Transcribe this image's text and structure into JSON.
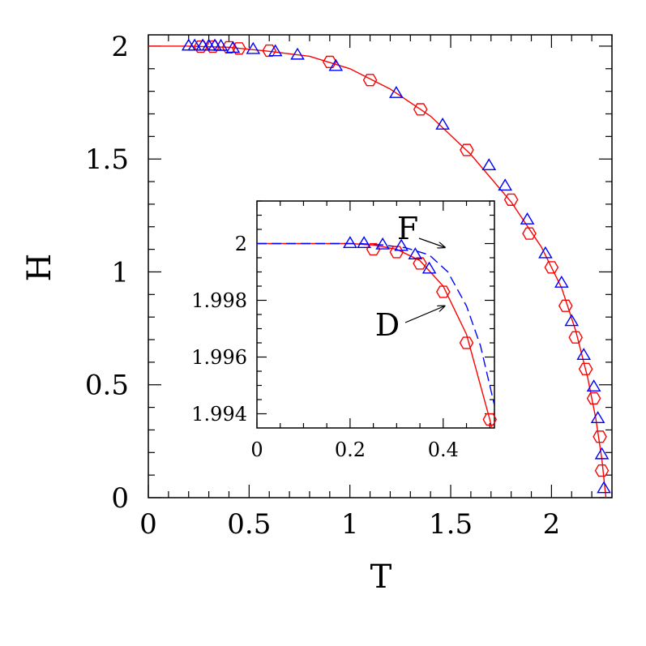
{
  "chart_data": [
    {
      "id": "main",
      "type": "scatter",
      "xlabel": "T",
      "ylabel": "H",
      "xlim": [
        0,
        2.3
      ],
      "ylim": [
        0,
        2.05
      ],
      "xticks": [
        {
          "v": 0,
          "label": "0"
        },
        {
          "v": 0.5,
          "label": "0.5"
        },
        {
          "v": 1,
          "label": "1"
        },
        {
          "v": 1.5,
          "label": "1.5"
        },
        {
          "v": 2,
          "label": "2"
        }
      ],
      "yticks": [
        {
          "v": 0,
          "label": "0"
        },
        {
          "v": 0.5,
          "label": "0.5"
        },
        {
          "v": 1,
          "label": "1"
        },
        {
          "v": 1.5,
          "label": "1.5"
        },
        {
          "v": 2,
          "label": "2"
        }
      ],
      "series": [
        {
          "marker": "hexagon",
          "color": "#ff0000",
          "points": [
            [
              0.26,
              1.998
            ],
            [
              0.32,
              1.998
            ],
            [
              0.4,
              1.995
            ],
            [
              0.45,
              1.99
            ],
            [
              0.6,
              1.98
            ],
            [
              0.9,
              1.93
            ],
            [
              1.1,
              1.85
            ],
            [
              1.35,
              1.72
            ],
            [
              1.58,
              1.54
            ],
            [
              1.8,
              1.32
            ],
            [
              1.89,
              1.17
            ],
            [
              2.0,
              1.02
            ],
            [
              2.07,
              0.85
            ],
            [
              2.12,
              0.71
            ],
            [
              2.17,
              0.57
            ],
            [
              2.21,
              0.44
            ],
            [
              2.24,
              0.27
            ],
            [
              2.25,
              0.12
            ]
          ]
        },
        {
          "marker": "triangle",
          "color": "#0000ff",
          "points": [
            [
              0.2,
              2.0
            ],
            [
              0.23,
              2.0
            ],
            [
              0.27,
              2.0
            ],
            [
              0.3,
              2.0
            ],
            [
              0.33,
              2.0
            ],
            [
              0.36,
              1.999
            ],
            [
              0.42,
              1.99
            ],
            [
              0.52,
              1.985
            ],
            [
              0.63,
              1.975
            ],
            [
              0.74,
              1.96
            ],
            [
              0.93,
              1.91
            ],
            [
              1.23,
              1.79
            ],
            [
              1.46,
              1.65
            ],
            [
              1.69,
              1.47
            ],
            [
              1.77,
              1.38
            ],
            [
              1.88,
              1.23
            ],
            [
              1.97,
              1.08
            ],
            [
              2.05,
              0.95
            ],
            [
              2.1,
              0.78
            ],
            [
              2.16,
              0.63
            ],
            [
              2.21,
              0.49
            ],
            [
              2.23,
              0.35
            ],
            [
              2.25,
              0.19
            ],
            [
              2.26,
              0.04
            ]
          ]
        }
      ],
      "curve": {
        "color": "#ff0000",
        "points": [
          [
            0,
            2.0
          ],
          [
            0.2,
            2.0
          ],
          [
            0.4,
            1.995
          ],
          [
            0.6,
            1.977
          ],
          [
            0.8,
            1.955
          ],
          [
            1.0,
            1.9
          ],
          [
            1.2,
            1.81
          ],
          [
            1.4,
            1.69
          ],
          [
            1.6,
            1.52
          ],
          [
            1.8,
            1.31
          ],
          [
            1.95,
            1.11
          ],
          [
            2.05,
            0.93
          ],
          [
            2.12,
            0.74
          ],
          [
            2.18,
            0.53
          ],
          [
            2.22,
            0.35
          ],
          [
            2.25,
            0.17
          ],
          [
            2.27,
            0.0
          ]
        ]
      }
    },
    {
      "id": "inset",
      "type": "scatter",
      "xlim": [
        0,
        0.51
      ],
      "ylim": [
        1.9935,
        2.0015
      ],
      "xticks": [
        {
          "v": 0,
          "label": "0"
        },
        {
          "v": 0.2,
          "label": "0.2"
        },
        {
          "v": 0.4,
          "label": "0.4"
        }
      ],
      "yticks": [
        {
          "v": 1.994,
          "label": "1.994"
        },
        {
          "v": 1.996,
          "label": "1.996"
        },
        {
          "v": 1.998,
          "label": "1.998"
        },
        {
          "v": 2.0,
          "label": "2"
        }
      ],
      "series": [
        {
          "marker": "hexagon",
          "color": "#ff0000",
          "points": [
            [
              0.25,
              1.9998
            ],
            [
              0.3,
              1.9997
            ],
            [
              0.35,
              1.9993
            ],
            [
              0.4,
              1.9983
            ],
            [
              0.45,
              1.9965
            ],
            [
              0.5,
              1.9938
            ]
          ]
        },
        {
          "marker": "triangle",
          "color": "#0000ff",
          "points": [
            [
              0.2,
              2.0
            ],
            [
              0.23,
              2.0
            ],
            [
              0.27,
              1.99995
            ],
            [
              0.31,
              1.9999
            ],
            [
              0.34,
              1.9996
            ],
            [
              0.37,
              1.9991
            ]
          ]
        }
      ],
      "curves": [
        {
          "name": "D",
          "color": "#ff0000",
          "dash": "",
          "points": [
            [
              0,
              2.0
            ],
            [
              0.2,
              2.0
            ],
            [
              0.25,
              1.99995
            ],
            [
              0.3,
              1.9998
            ],
            [
              0.35,
              1.9994
            ],
            [
              0.4,
              1.9985
            ],
            [
              0.45,
              1.9968
            ],
            [
              0.5,
              1.9938
            ],
            [
              0.51,
              1.9931
            ]
          ]
        },
        {
          "name": "F",
          "color": "#0000ff",
          "dash": "12 6",
          "points": [
            [
              0,
              2.0
            ],
            [
              0.22,
              2.0
            ],
            [
              0.27,
              1.99995
            ],
            [
              0.32,
              1.99985
            ],
            [
              0.37,
              1.9996
            ],
            [
              0.41,
              1.999
            ],
            [
              0.45,
              1.9978
            ],
            [
              0.48,
              1.9964
            ],
            [
              0.51,
              1.9943
            ]
          ]
        }
      ],
      "annotations": [
        {
          "text": "F",
          "target": [
            0.4,
            1.99975
          ]
        },
        {
          "text": "D",
          "target": [
            0.41,
            1.9978
          ]
        }
      ]
    }
  ]
}
